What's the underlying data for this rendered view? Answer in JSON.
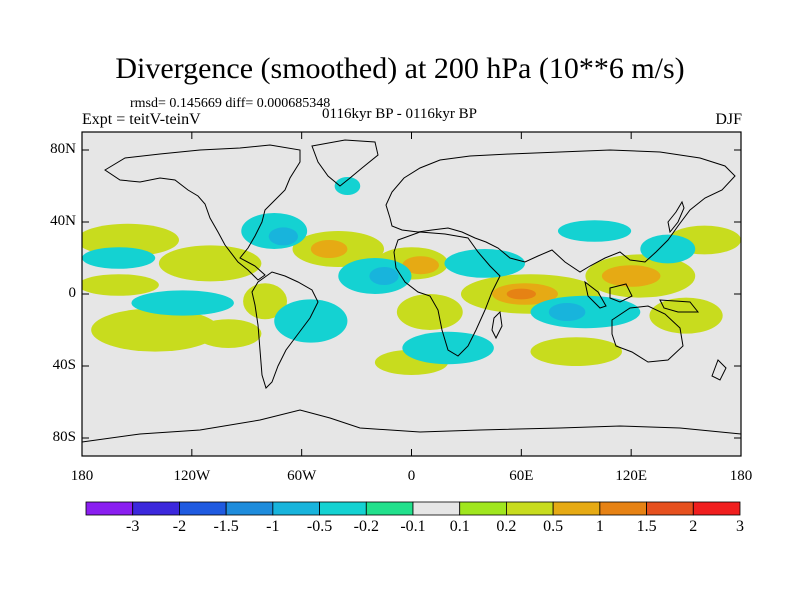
{
  "title": "Divergence (smoothed) at 200 hPa (10**6 m/s)",
  "subtitle_stats": "rmsd= 0.145669 diff= 0.000685348",
  "experiment": "Expt = teitV-teinV",
  "period": "0116kyr BP - 0116kyr BP",
  "season": "DJF",
  "lat_ticks": [
    "80N",
    "40N",
    "0",
    "40S",
    "80S"
  ],
  "lat_values": [
    80,
    40,
    0,
    -40,
    -80
  ],
  "lon_ticks": [
    "180",
    "120W",
    "60W",
    "0",
    "60E",
    "120E",
    "180"
  ],
  "lon_values": [
    -180,
    -120,
    -60,
    0,
    60,
    120,
    180
  ],
  "colorbar": {
    "labels": [
      "-3",
      "-2",
      "-1.5",
      "-1",
      "-0.5",
      "-0.2",
      "-0.1",
      "0.1",
      "0.2",
      "0.5",
      "1",
      "1.5",
      "2",
      "3"
    ],
    "colors": [
      "#8a1ef0",
      "#3c28dc",
      "#1f5ae0",
      "#1e8cdc",
      "#18b4dc",
      "#14d2d2",
      "#22e08c",
      "#e6e6e6",
      "#a0e61e",
      "#c8dc1e",
      "#e6aa14",
      "#e68214",
      "#e6501e",
      "#f01e1e"
    ]
  },
  "colors": {
    "background_field": "#e6e6e6",
    "coastline": "#000000",
    "frame": "#000000"
  },
  "regions": [
    {
      "level": "0.2",
      "lon": -155,
      "lat": 30,
      "rlon": 28,
      "rlat": 9
    },
    {
      "level": "0.2",
      "lon": -160,
      "lat": 5,
      "rlon": 22,
      "rlat": 6
    },
    {
      "level": "0.2",
      "lon": -110,
      "lat": 17,
      "rlon": 28,
      "rlat": 10
    },
    {
      "level": "0.2",
      "lon": -140,
      "lat": -20,
      "rlon": 35,
      "rlat": 12
    },
    {
      "level": "0.2",
      "lon": -100,
      "lat": -22,
      "rlon": 18,
      "rlat": 8
    },
    {
      "level": "0.2",
      "lon": -80,
      "lat": -4,
      "rlon": 12,
      "rlat": 10
    },
    {
      "level": "0.2",
      "lon": -40,
      "lat": 25,
      "rlon": 25,
      "rlat": 10
    },
    {
      "level": "0.2",
      "lon": 0,
      "lat": 17,
      "rlon": 20,
      "rlat": 9
    },
    {
      "level": "0.2",
      "lon": 10,
      "lat": -10,
      "rlon": 18,
      "rlat": 10
    },
    {
      "level": "0.2",
      "lon": 65,
      "lat": 0,
      "rlon": 38,
      "rlat": 11
    },
    {
      "level": "0.2",
      "lon": 90,
      "lat": -32,
      "rlon": 25,
      "rlat": 8
    },
    {
      "level": "0.2",
      "lon": 125,
      "lat": 10,
      "rlon": 30,
      "rlat": 12
    },
    {
      "level": "0.2",
      "lon": 150,
      "lat": -12,
      "rlon": 20,
      "rlat": 10
    },
    {
      "level": "0.2",
      "lon": 0,
      "lat": -38,
      "rlon": 20,
      "rlat": 7
    },
    {
      "level": "0.2",
      "lon": 160,
      "lat": 30,
      "rlon": 20,
      "rlat": 8
    },
    {
      "level": "0.5",
      "lon": 62,
      "lat": 0,
      "rlon": 18,
      "rlat": 6
    },
    {
      "level": "0.5",
      "lon": 120,
      "lat": 10,
      "rlon": 16,
      "rlat": 6
    },
    {
      "level": "0.5",
      "lon": 5,
      "lat": 16,
      "rlon": 10,
      "rlat": 5
    },
    {
      "level": "0.5",
      "lon": -45,
      "lat": 25,
      "rlon": 10,
      "rlat": 5
    },
    {
      "level": "1",
      "lon": 60,
      "lat": 0,
      "rlon": 8,
      "rlat": 3
    },
    {
      "level": "-0.2",
      "lon": -75,
      "lat": 35,
      "rlon": 18,
      "rlat": 10
    },
    {
      "level": "-0.2",
      "lon": -20,
      "lat": 10,
      "rlon": 20,
      "rlat": 10
    },
    {
      "level": "-0.2",
      "lon": -55,
      "lat": -15,
      "rlon": 20,
      "rlat": 12
    },
    {
      "level": "-0.2",
      "lon": -125,
      "lat": -5,
      "rlon": 28,
      "rlat": 7
    },
    {
      "level": "-0.2",
      "lon": -160,
      "lat": 20,
      "rlon": 20,
      "rlat": 6
    },
    {
      "level": "-0.2",
      "lon": 40,
      "lat": 17,
      "rlon": 22,
      "rlat": 8
    },
    {
      "level": "-0.2",
      "lon": 95,
      "lat": -10,
      "rlon": 30,
      "rlat": 9
    },
    {
      "level": "-0.2",
      "lon": 140,
      "lat": 25,
      "rlon": 15,
      "rlat": 8
    },
    {
      "level": "-0.2",
      "lon": 20,
      "lat": -30,
      "rlon": 25,
      "rlat": 9
    },
    {
      "level": "-0.2",
      "lon": -35,
      "lat": 60,
      "rlon": 7,
      "rlat": 5
    },
    {
      "level": "-0.2",
      "lon": 100,
      "lat": 35,
      "rlon": 20,
      "rlat": 6
    },
    {
      "level": "-0.5",
      "lon": 85,
      "lat": -10,
      "rlon": 10,
      "rlat": 5
    },
    {
      "level": "-0.5",
      "lon": -15,
      "lat": 10,
      "rlon": 8,
      "rlat": 5
    },
    {
      "level": "-0.5",
      "lon": -70,
      "lat": 32,
      "rlon": 8,
      "rlat": 5
    }
  ]
}
